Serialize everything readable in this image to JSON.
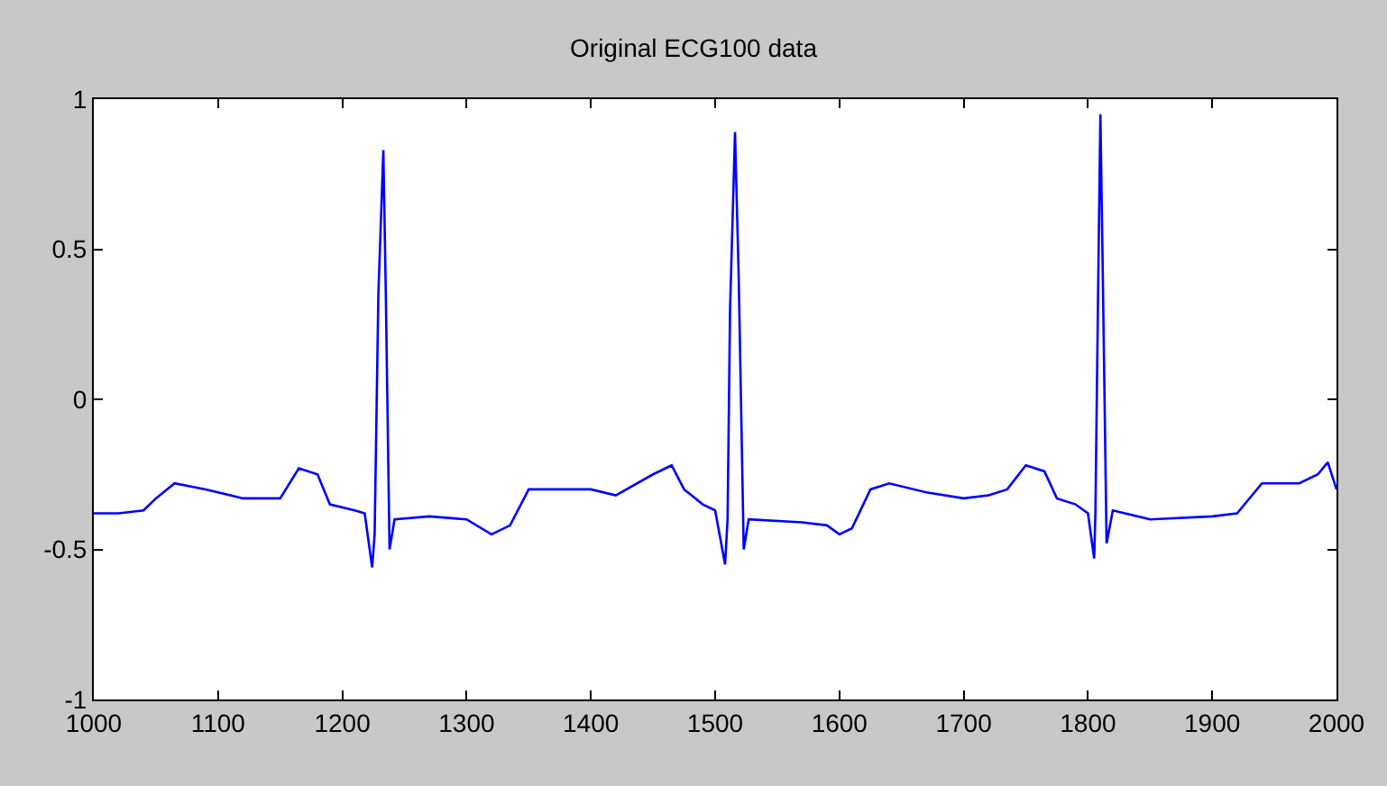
{
  "chart_data": {
    "type": "line",
    "title": "Original ECG100 data",
    "x": [
      1000,
      1020,
      1040,
      1050,
      1065,
      1090,
      1120,
      1150,
      1165,
      1180,
      1190,
      1210,
      1218,
      1224,
      1226,
      1229,
      1233,
      1235,
      1238,
      1242,
      1270,
      1300,
      1320,
      1335,
      1350,
      1380,
      1400,
      1420,
      1450,
      1465,
      1475,
      1490,
      1500,
      1508,
      1510,
      1512,
      1516,
      1519,
      1523,
      1527,
      1570,
      1590,
      1600,
      1610,
      1625,
      1640,
      1670,
      1700,
      1720,
      1735,
      1750,
      1765,
      1775,
      1790,
      1800,
      1805,
      1806,
      1808,
      1810,
      1812,
      1815,
      1820,
      1850,
      1900,
      1920,
      1940,
      1970,
      1985,
      1993,
      2000
    ],
    "series": [
      {
        "color": "#0000ff",
        "values": [
          -0.38,
          -0.38,
          -0.37,
          -0.33,
          -0.28,
          -0.3,
          -0.33,
          -0.33,
          -0.23,
          -0.25,
          -0.35,
          -0.37,
          -0.38,
          -0.56,
          -0.45,
          0.35,
          0.83,
          0.35,
          -0.5,
          -0.4,
          -0.39,
          -0.4,
          -0.45,
          -0.42,
          -0.3,
          -0.3,
          -0.3,
          -0.32,
          -0.25,
          -0.22,
          -0.3,
          -0.35,
          -0.37,
          -0.55,
          -0.4,
          0.3,
          0.89,
          0.4,
          -0.5,
          -0.4,
          -0.41,
          -0.42,
          -0.45,
          -0.43,
          -0.3,
          -0.28,
          -0.31,
          -0.33,
          -0.32,
          -0.3,
          -0.22,
          -0.24,
          -0.33,
          -0.35,
          -0.38,
          -0.53,
          -0.38,
          0.3,
          0.95,
          0.4,
          -0.48,
          -0.37,
          -0.4,
          -0.39,
          -0.38,
          -0.28,
          -0.28,
          -0.25,
          -0.21,
          -0.3
        ]
      }
    ],
    "xlim": [
      1000,
      2000
    ],
    "xticks": [
      1000,
      1100,
      1200,
      1300,
      1400,
      1500,
      1600,
      1700,
      1800,
      1900,
      2000
    ],
    "ylim": [
      -1,
      1
    ],
    "yticks": [
      -1,
      -0.5,
      0,
      0.5,
      1
    ],
    "grid": false,
    "legend": false,
    "marker": "none",
    "line_style": "solid"
  }
}
